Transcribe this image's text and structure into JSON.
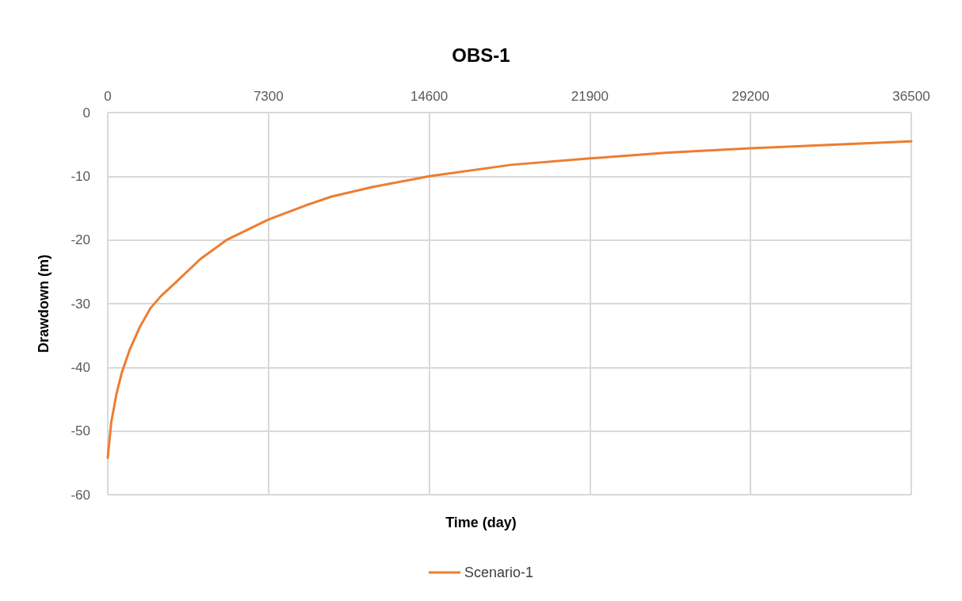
{
  "chart_data": {
    "type": "line",
    "title": "OBS-1",
    "xlabel": "Time (day)",
    "ylabel": "Drawdown (m)",
    "xlim": [
      0,
      36500
    ],
    "xticks": [
      0,
      7300,
      14600,
      21900,
      29200,
      36500
    ],
    "ylim": [
      -60,
      0
    ],
    "yticks": [
      -60,
      -50,
      -40,
      -30,
      -20,
      -10,
      0
    ],
    "grid": true,
    "legend": "bottom",
    "marker": "none",
    "line_style": "solid",
    "series": [
      {
        "name": "Scenario-1",
        "color": "#ed7d31",
        "x": [
          0,
          155,
          393,
          631,
          988,
          1465,
          1941,
          2418,
          3013,
          4204,
          5395,
          7300,
          8967,
          10158,
          12000,
          14600,
          18330,
          21900,
          25435,
          29200,
          32540,
          36500
        ],
        "values": [
          -54.2,
          -48.7,
          -44.2,
          -40.9,
          -37.3,
          -33.6,
          -30.7,
          -28.8,
          -26.9,
          -23.0,
          -20.0,
          -16.8,
          -14.6,
          -13.2,
          -11.7,
          -10.0,
          -8.2,
          -7.2,
          -6.3,
          -5.6,
          -5.1,
          -4.5
        ]
      }
    ]
  }
}
